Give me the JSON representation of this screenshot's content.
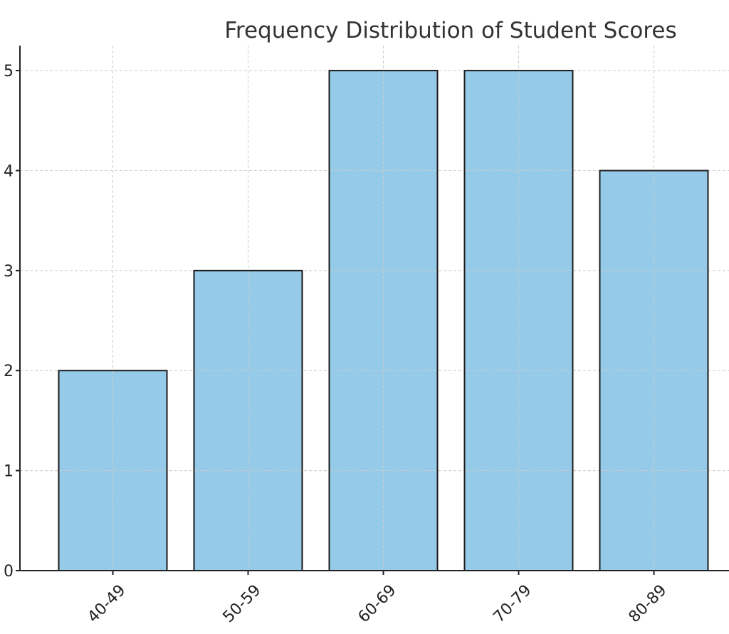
{
  "chart_data": {
    "type": "bar",
    "title": "Frequency Distribution of Student Scores",
    "xlabel": "",
    "ylabel": "",
    "categories": [
      "40-49",
      "50-59",
      "60-69",
      "70-79",
      "80-89"
    ],
    "values": [
      2,
      3,
      5,
      5,
      4
    ],
    "ylim": [
      0,
      5.25
    ],
    "yticks": [
      0,
      1,
      2,
      3,
      4,
      5
    ],
    "grid": true,
    "bar_color": "#95CBE8",
    "edge_color": "#1a1a1a"
  }
}
